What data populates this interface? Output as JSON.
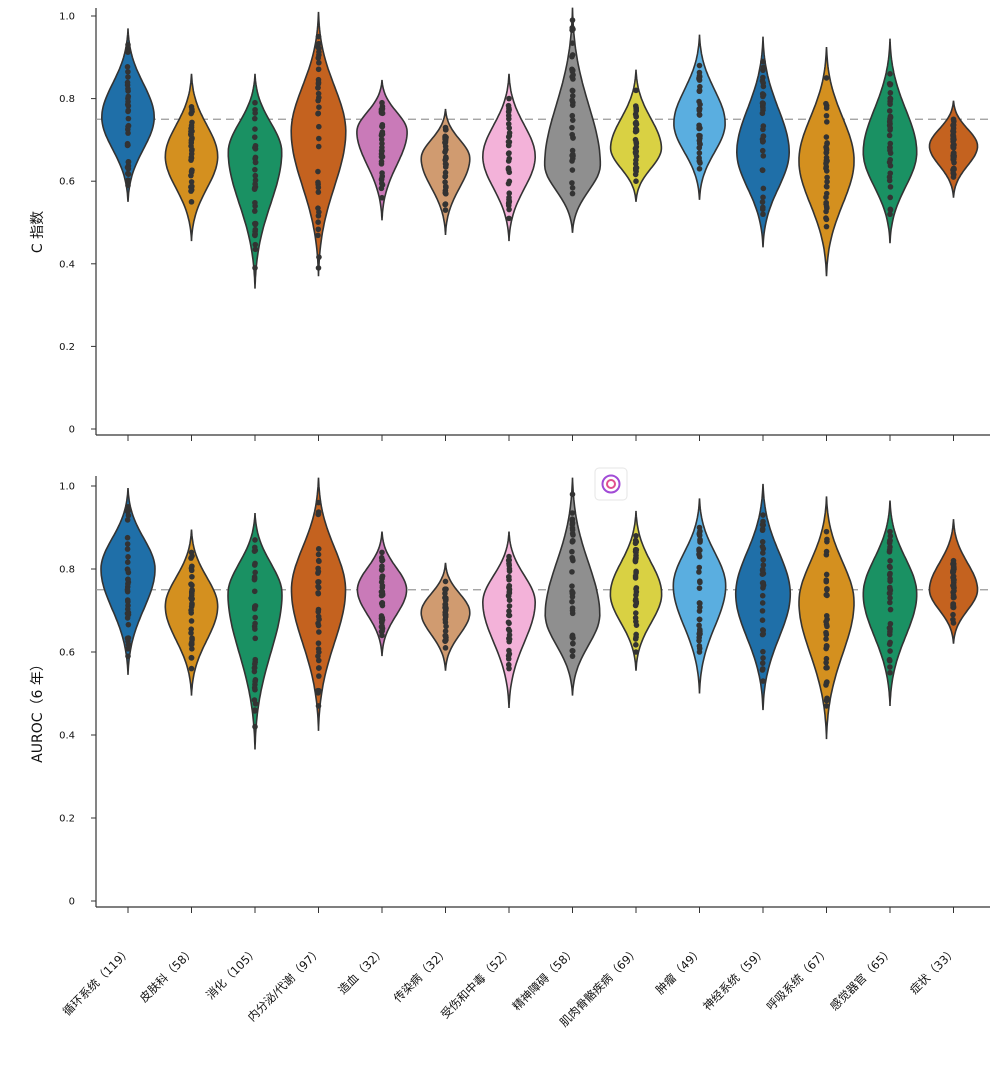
{
  "chart_data": {
    "type": "violin",
    "reference_line": 0.75,
    "categories": [
      {
        "label": "循环系统（119）",
        "color": "#1f6fa8",
        "c_index": {
          "min": 0.55,
          "max": 0.97,
          "median": 0.755,
          "spread": 0.22,
          "pts": [
            0.59,
            0.93
          ]
        },
        "auroc": {
          "min": 0.545,
          "max": 0.995,
          "median": 0.8,
          "spread": 0.25,
          "pts": [
            0.59,
            0.95
          ]
        }
      },
      {
        "label": "皮肤科（58）",
        "color": "#d4901f",
        "c_index": {
          "min": 0.455,
          "max": 0.86,
          "median": 0.66,
          "spread": 0.22,
          "pts": [
            0.55,
            0.78
          ]
        },
        "auroc": {
          "min": 0.495,
          "max": 0.895,
          "median": 0.71,
          "spread": 0.22,
          "pts": [
            0.56,
            0.84
          ]
        }
      },
      {
        "label": "消化（105）",
        "color": "#1a9163",
        "c_index": {
          "min": 0.34,
          "max": 0.86,
          "median": 0.67,
          "spread": 0.24,
          "pts": [
            0.39,
            0.79
          ]
        },
        "auroc": {
          "min": 0.365,
          "max": 0.935,
          "median": 0.74,
          "spread": 0.25,
          "pts": [
            0.42,
            0.87
          ]
        }
      },
      {
        "label": "内分泌/代谢（97）",
        "color": "#c4621f",
        "c_index": {
          "min": 0.37,
          "max": 1.01,
          "median": 0.72,
          "spread": 0.26,
          "pts": [
            0.39,
            0.95
          ]
        },
        "auroc": {
          "min": 0.41,
          "max": 1.02,
          "median": 0.75,
          "spread": 0.25,
          "pts": [
            0.47,
            0.96
          ]
        }
      },
      {
        "label": "造血（32）",
        "color": "#c97ab8",
        "c_index": {
          "min": 0.505,
          "max": 0.845,
          "median": 0.72,
          "spread": 0.18,
          "pts": [
            0.56,
            0.79
          ]
        },
        "auroc": {
          "min": 0.59,
          "max": 0.89,
          "median": 0.75,
          "spread": 0.16,
          "pts": [
            0.64,
            0.84
          ]
        }
      },
      {
        "label": "传染病（32）",
        "color": "#d09b70",
        "c_index": {
          "min": 0.47,
          "max": 0.775,
          "median": 0.655,
          "spread": 0.15,
          "pts": [
            0.53,
            0.73
          ]
        },
        "auroc": {
          "min": 0.555,
          "max": 0.815,
          "median": 0.695,
          "spread": 0.15,
          "pts": [
            0.61,
            0.77
          ]
        }
      },
      {
        "label": "受伤和中毒（52）",
        "color": "#f3b2d9",
        "c_index": {
          "min": 0.455,
          "max": 0.86,
          "median": 0.66,
          "spread": 0.22,
          "pts": [
            0.51,
            0.8
          ]
        },
        "auroc": {
          "min": 0.465,
          "max": 0.89,
          "median": 0.72,
          "spread": 0.22,
          "pts": [
            0.56,
            0.83
          ]
        }
      },
      {
        "label": "精神障碍（58）",
        "color": "#8f8f8f",
        "c_index": {
          "min": 0.475,
          "max": 1.02,
          "median": 0.64,
          "spread": 0.28,
          "pts": [
            0.57,
            0.99
          ]
        },
        "auroc": {
          "min": 0.495,
          "max": 1.02,
          "median": 0.69,
          "spread": 0.26,
          "pts": [
            0.59,
            0.98
          ]
        }
      },
      {
        "label": "肌肉骨骼疾病（69）",
        "color": "#d9d143",
        "c_index": {
          "min": 0.55,
          "max": 0.87,
          "median": 0.68,
          "spread": 0.19,
          "pts": [
            0.6,
            0.82
          ]
        },
        "auroc": {
          "min": 0.555,
          "max": 0.94,
          "median": 0.74,
          "spread": 0.2,
          "pts": [
            0.6,
            0.88
          ]
        }
      },
      {
        "label": "肿瘤（49）",
        "color": "#5aaee0",
        "c_index": {
          "min": 0.555,
          "max": 0.955,
          "median": 0.74,
          "spread": 0.2,
          "pts": [
            0.63,
            0.88
          ]
        },
        "auroc": {
          "min": 0.5,
          "max": 0.97,
          "median": 0.76,
          "spread": 0.22,
          "pts": [
            0.6,
            0.9
          ]
        }
      },
      {
        "label": "神经系统（59）",
        "color": "#1f6fa8",
        "c_index": {
          "min": 0.44,
          "max": 0.95,
          "median": 0.67,
          "spread": 0.22,
          "pts": [
            0.52,
            0.89
          ]
        },
        "auroc": {
          "min": 0.46,
          "max": 1.005,
          "median": 0.74,
          "spread": 0.26,
          "pts": [
            0.53,
            0.93
          ]
        }
      },
      {
        "label": "呼吸系统（67）",
        "color": "#d4901f",
        "c_index": {
          "min": 0.37,
          "max": 0.925,
          "median": 0.65,
          "spread": 0.27,
          "pts": [
            0.49,
            0.85
          ]
        },
        "auroc": {
          "min": 0.39,
          "max": 0.975,
          "median": 0.72,
          "spread": 0.27,
          "pts": [
            0.47,
            0.89
          ]
        }
      },
      {
        "label": "感觉器官（65）",
        "color": "#1a9163",
        "c_index": {
          "min": 0.45,
          "max": 0.945,
          "median": 0.67,
          "spread": 0.24,
          "pts": [
            0.52,
            0.86
          ]
        },
        "auroc": {
          "min": 0.47,
          "max": 0.965,
          "median": 0.74,
          "spread": 0.24,
          "pts": [
            0.55,
            0.89
          ]
        }
      },
      {
        "label": "症状（33）",
        "color": "#c4621f",
        "c_index": {
          "min": 0.56,
          "max": 0.795,
          "median": 0.685,
          "spread": 0.14,
          "pts": [
            0.61,
            0.75
          ]
        },
        "auroc": {
          "min": 0.62,
          "max": 0.92,
          "median": 0.75,
          "spread": 0.14,
          "pts": [
            0.67,
            0.82
          ]
        }
      }
    ],
    "panels": [
      {
        "key": "c_index",
        "ylabel": "C 指数",
        "ylim": [
          0,
          1.0
        ],
        "yticks": [
          "0",
          "0.2",
          "0.4",
          "0.6",
          "0.8",
          "1.0"
        ]
      },
      {
        "key": "auroc",
        "ylabel": "AUROC（6 年）",
        "ylim": [
          0,
          1.0
        ],
        "yticks": [
          "0",
          "0.2",
          "0.4",
          "0.6",
          "0.8",
          "1.0"
        ]
      }
    ],
    "grid": false,
    "legend": "none"
  }
}
